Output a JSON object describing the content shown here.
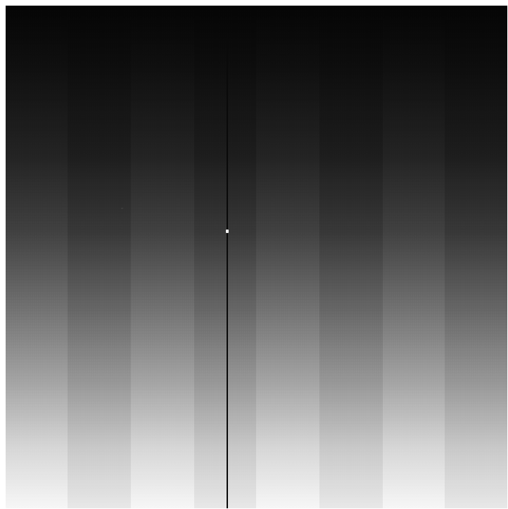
{
  "image": {
    "description_colors": {
      "top": "#050505",
      "bottom": "#f6f6f6",
      "line": "#0a0a0a",
      "hot_pixel": "#f2f2f2"
    }
  }
}
